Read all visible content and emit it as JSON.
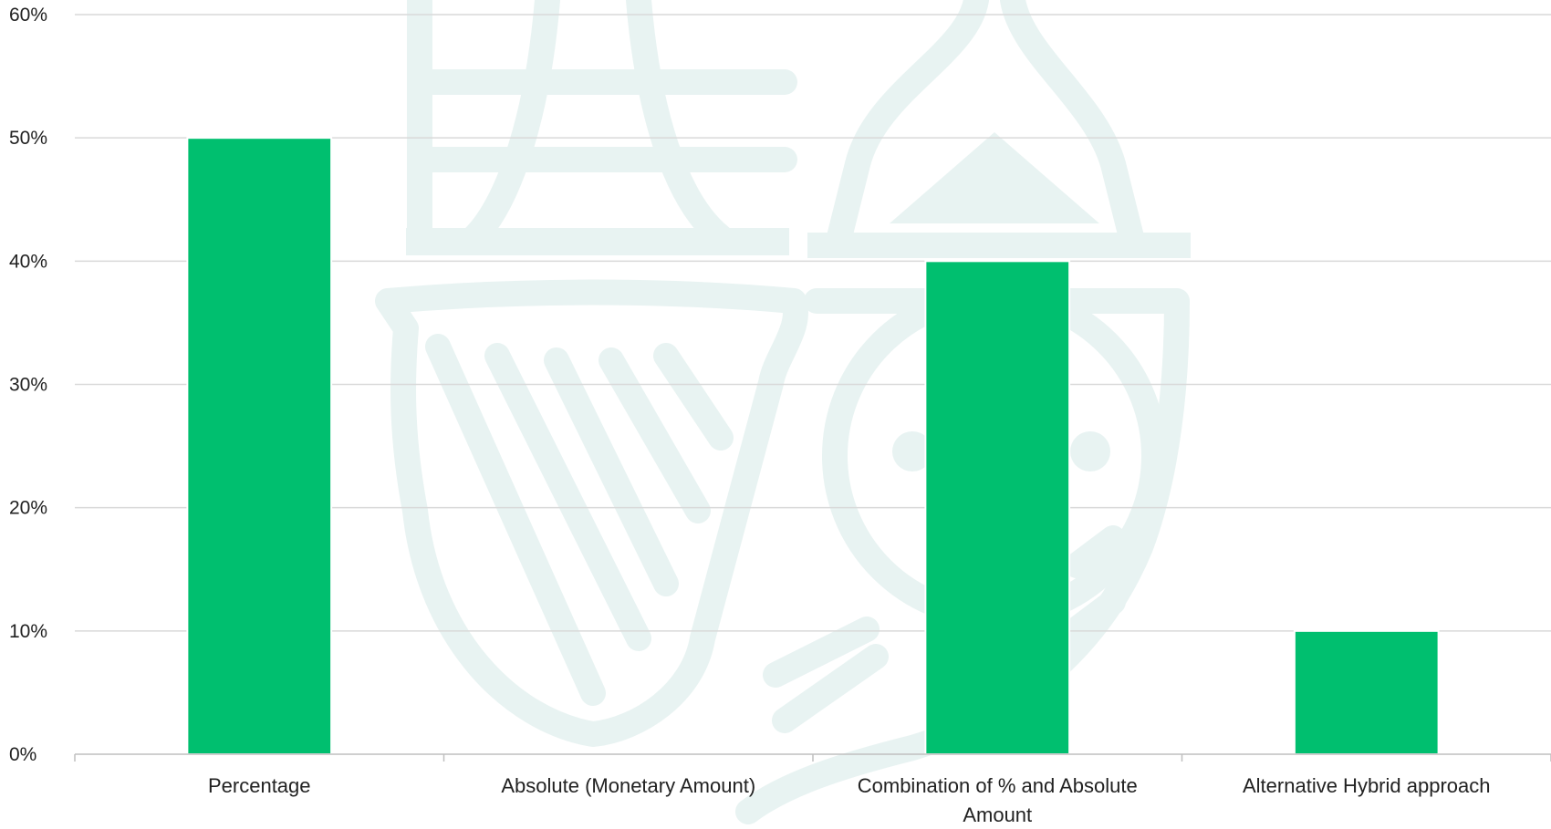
{
  "chart_data": {
    "type": "bar",
    "title": "",
    "xlabel": "",
    "ylabel": "",
    "categories": [
      [
        "Percentage"
      ],
      [
        "Absolute (Monetary Amount)"
      ],
      [
        "Combination of % and Absolute",
        "Amount"
      ],
      [
        "Alternative Hybrid approach"
      ]
    ],
    "values": [
      0.5,
      0,
      0.4,
      0.1
    ],
    "ylim": [
      0,
      0.6
    ],
    "yticks": [
      0,
      0.1,
      0.2,
      0.3,
      0.4,
      0.5,
      0.6
    ],
    "ytick_labels": [
      "0%",
      "10%",
      "20%",
      "30%",
      "40%",
      "50%",
      "60%"
    ],
    "grid": true,
    "legend": "none",
    "bar_color": "#00bf6f",
    "grid_color": "#d9d9d9",
    "watermark_color": "#e8f3f2",
    "watermark": "faint harp-and-shield crest behind plot"
  }
}
